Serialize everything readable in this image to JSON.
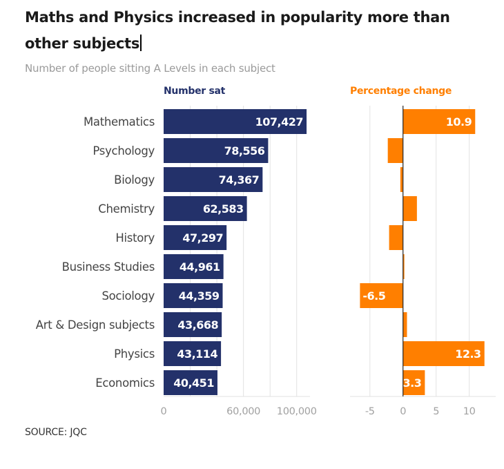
{
  "title": "Maths and Physics increased in popularity more than other subjects",
  "subtitle": "Number of people sitting A Levels in each subject",
  "source": "SOURCE: JQC",
  "colors": {
    "bar_navy": "#23316a",
    "bar_orange": "#ff7f00",
    "grid": "#e2e2e2",
    "axis_label": "#a0a0a0",
    "category_text": "#444444"
  },
  "chart_data": [
    {
      "type": "bar",
      "orientation": "horizontal",
      "title": "Number sat",
      "categories": [
        "Mathematics",
        "Psychology",
        "Biology",
        "Chemistry",
        "History",
        "Business Studies",
        "Sociology",
        "Art & Design subjects",
        "Physics",
        "Economics"
      ],
      "values": [
        107427,
        78556,
        74367,
        62583,
        47297,
        44961,
        44359,
        43668,
        43114,
        40451
      ],
      "value_labels": [
        "107,427",
        "78,556",
        "74,367",
        "62,583",
        "47,297",
        "44,961",
        "44,359",
        "43,668",
        "43,114",
        "40,451"
      ],
      "xlim": [
        0,
        110000
      ],
      "xticks": [
        0,
        60000,
        100000
      ],
      "xtick_labels": [
        "0",
        "60,000",
        "100,000"
      ],
      "gridlines": [
        0,
        20000,
        40000,
        60000,
        80000,
        100000
      ],
      "grid": true
    },
    {
      "type": "bar",
      "orientation": "horizontal",
      "title": "Percentage change",
      "categories": [
        "Mathematics",
        "Psychology",
        "Biology",
        "Chemistry",
        "History",
        "Business Studies",
        "Sociology",
        "Art & Design subjects",
        "Physics",
        "Economics"
      ],
      "values": [
        10.9,
        -2.3,
        -0.4,
        2.1,
        -2.1,
        0.2,
        -6.5,
        0.6,
        12.3,
        3.3
      ],
      "value_labels": [
        "10.9",
        "",
        "",
        "",
        "",
        "",
        "-6.5",
        "",
        "12.3",
        "3.3"
      ],
      "xlim": [
        -8,
        14
      ],
      "xticks": [
        -5,
        0,
        5,
        10
      ],
      "xtick_labels": [
        "-5",
        "0",
        "5",
        "10"
      ],
      "gridlines": [
        -5,
        0,
        5,
        10
      ],
      "grid": true
    }
  ]
}
